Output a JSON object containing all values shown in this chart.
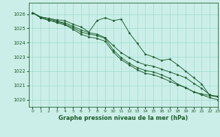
{
  "title": "Graphe pression niveau de la mer (hPa)",
  "background_color": "#cceee8",
  "grid_color": "#99ddcc",
  "line_color": "#1a5c2a",
  "xlim": [
    -0.5,
    23
  ],
  "ylim": [
    1019.5,
    1026.8
  ],
  "yticks": [
    1020,
    1021,
    1022,
    1023,
    1024,
    1025,
    1026
  ],
  "xticks": [
    0,
    1,
    2,
    3,
    4,
    5,
    6,
    7,
    8,
    9,
    10,
    11,
    12,
    13,
    14,
    15,
    16,
    17,
    18,
    19,
    20,
    21,
    22,
    23
  ],
  "series": [
    [
      1026.1,
      1025.8,
      1025.7,
      1025.6,
      1025.55,
      1025.3,
      1025.1,
      1024.75,
      1025.55,
      1025.75,
      1025.55,
      1025.65,
      1024.7,
      1023.95,
      1023.2,
      1023.0,
      1022.75,
      1022.85,
      1022.45,
      1022.0,
      1021.55,
      1021.1,
      1020.3,
      1020.25
    ],
    [
      1026.1,
      1025.75,
      1025.55,
      1025.5,
      1025.3,
      1025.05,
      1024.75,
      1024.6,
      1024.5,
      1024.3,
      1023.5,
      1022.95,
      1022.55,
      1022.25,
      1022.05,
      1021.95,
      1021.75,
      1021.5,
      1021.1,
      1020.85,
      1020.55,
      1020.4,
      1020.3,
      1020.2
    ],
    [
      1026.1,
      1025.75,
      1025.6,
      1025.4,
      1025.25,
      1024.95,
      1024.6,
      1024.4,
      1024.3,
      1024.1,
      1023.35,
      1022.8,
      1022.45,
      1022.1,
      1021.85,
      1021.75,
      1021.55,
      1021.3,
      1021.05,
      1020.85,
      1020.55,
      1020.35,
      1020.15,
      1020.0
    ],
    [
      1026.1,
      1025.8,
      1025.7,
      1025.5,
      1025.4,
      1025.15,
      1024.9,
      1024.7,
      1024.6,
      1024.35,
      1023.8,
      1023.3,
      1022.95,
      1022.65,
      1022.45,
      1022.35,
      1022.15,
      1021.95,
      1021.75,
      1021.55,
      1021.15,
      1020.8,
      1020.35,
      1020.2
    ]
  ]
}
